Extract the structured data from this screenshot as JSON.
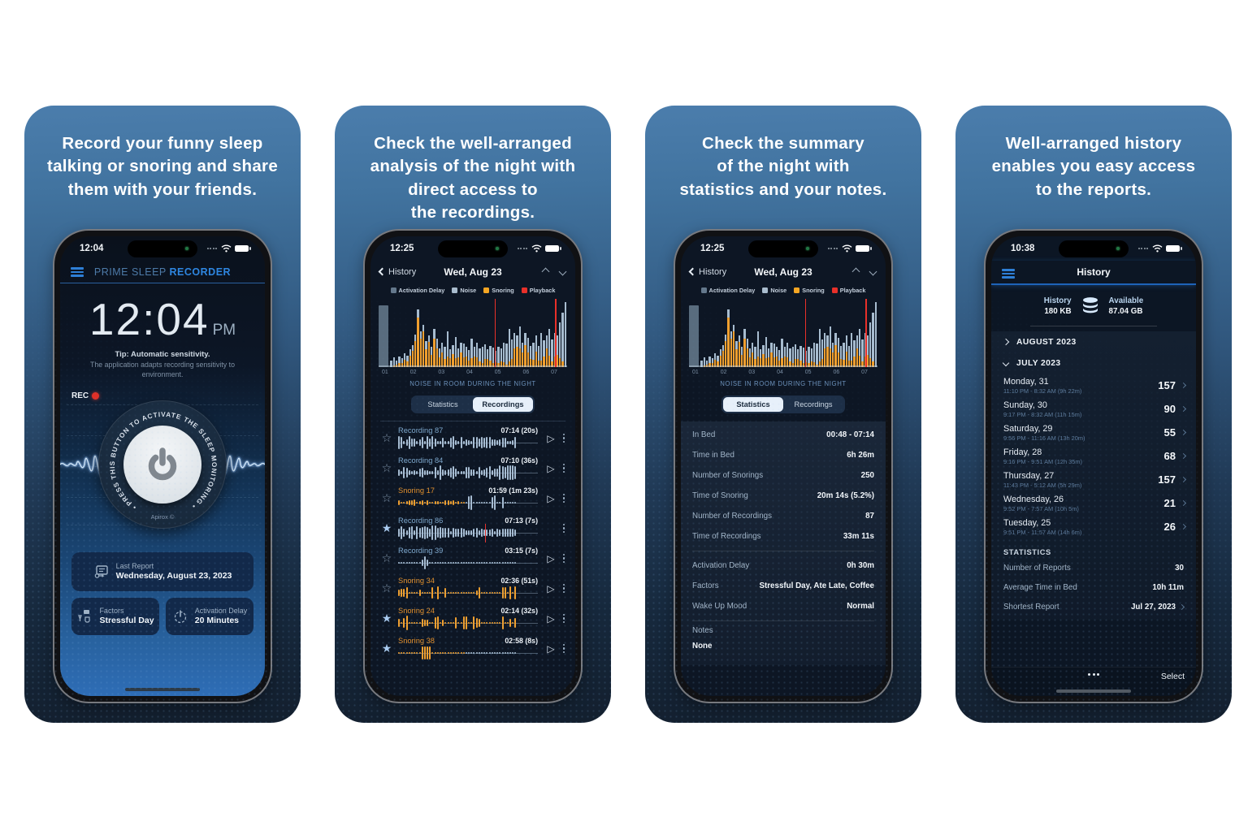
{
  "night_chart": {
    "type": "bar",
    "legend": [
      {
        "label": "Activation Delay",
        "color": "#64788c"
      },
      {
        "label": "Noise",
        "color": "#a9bccd"
      },
      {
        "label": "Snoring",
        "color": "#f5a623"
      },
      {
        "label": "Playback",
        "color": "#e8302a"
      }
    ],
    "x_ticks": [
      "01",
      "02",
      "03",
      "04",
      "05",
      "06",
      "07"
    ],
    "caption": "NOISE IN ROOM DURING THE NIGHT",
    "activation_bar": {
      "height": 0.9
    },
    "playback_lines": [
      0.615,
      0.935
    ],
    "bars": [
      [
        0.1,
        0
      ],
      [
        0.14,
        0.2
      ],
      [
        0.1,
        0.3
      ],
      [
        0.16,
        0.4
      ],
      [
        0.13,
        0.5
      ],
      [
        0.2,
        0.55
      ],
      [
        0.17,
        0.5
      ],
      [
        0.26,
        0.65
      ],
      [
        0.32,
        0.75
      ],
      [
        0.48,
        0.8
      ],
      [
        0.85,
        0.85
      ],
      [
        0.52,
        0.8
      ],
      [
        0.62,
        0.85
      ],
      [
        0.38,
        0.7
      ],
      [
        0.46,
        0.8
      ],
      [
        0.3,
        0.6
      ],
      [
        0.56,
        0.75
      ],
      [
        0.42,
        0.65
      ],
      [
        0.28,
        0.5
      ],
      [
        0.36,
        0.6
      ],
      [
        0.3,
        0.4
      ],
      [
        0.52,
        0.3
      ],
      [
        0.26,
        0.5
      ],
      [
        0.32,
        0.6
      ],
      [
        0.44,
        0.3
      ],
      [
        0.28,
        0.5
      ],
      [
        0.36,
        0.6
      ],
      [
        0.35,
        0.4
      ],
      [
        0.3,
        0.5
      ],
      [
        0.25,
        0.4
      ],
      [
        0.42,
        0.3
      ],
      [
        0.3,
        0.5
      ],
      [
        0.36,
        0.4
      ],
      [
        0.28,
        0.3
      ],
      [
        0.3,
        0.2
      ],
      [
        0.33,
        0.35
      ],
      [
        0.26,
        0.45
      ],
      [
        0.31,
        0.3
      ],
      [
        0.28,
        0.2
      ],
      [
        0.24,
        0.3
      ],
      [
        0.3,
        0.2
      ],
      [
        0.27,
        0.3
      ],
      [
        0.36,
        0.2
      ],
      [
        0.34,
        0.1
      ],
      [
        0.56,
        0.15
      ],
      [
        0.4,
        0.3
      ],
      [
        0.5,
        0.55
      ],
      [
        0.46,
        0.65
      ],
      [
        0.6,
        0.45
      ],
      [
        0.36,
        0.6
      ],
      [
        0.5,
        0.65
      ],
      [
        0.43,
        0.5
      ],
      [
        0.31,
        0.4
      ],
      [
        0.36,
        0.3
      ],
      [
        0.46,
        0.5
      ],
      [
        0.31,
        0.3
      ],
      [
        0.5,
        0.2
      ],
      [
        0.39,
        0.4
      ],
      [
        0.46,
        0.6
      ],
      [
        0.56,
        0.3
      ],
      [
        0.41,
        0.2
      ],
      [
        0.5,
        0.3
      ],
      [
        0.46,
        0.4
      ],
      [
        0.66,
        0.2
      ],
      [
        0.8,
        0.1
      ],
      [
        0.95,
        0
      ]
    ]
  },
  "panels": [
    {
      "headline_lines": [
        "Record your funny sleep",
        "talking or snoring and share",
        "them with your friends."
      ],
      "phone": {
        "status_time": "12:04",
        "header": {
          "title_primary": "PRIME SLEEP",
          "title_accent": "RECORDER"
        },
        "clock": {
          "time": "12:04",
          "ampm": "PM"
        },
        "tip_title": "Tip: Automatic sensitivity.",
        "tip_body": "The application adapts recording sensitivity to\nenvironment.",
        "rec_label": "REC",
        "ring_text": "• PRESS THIS BUTTON TO ACTIVATE THE SLEEP MONITORING •",
        "brand": "Apirox ©",
        "last_report": {
          "label": "Last Report",
          "value": "Wednesday, August 23, 2023"
        },
        "factors": {
          "label": "Factors",
          "value": "Stressful Day"
        },
        "activation_delay": {
          "label": "Activation Delay",
          "value": "20 Minutes"
        }
      }
    },
    {
      "headline_lines": [
        "Check the well-arranged",
        "analysis of the night with",
        "direct access to",
        "the recordings."
      ],
      "phone": {
        "status_time": "12:25",
        "nav": {
          "back": "History",
          "title": "Wed, Aug 23"
        },
        "tabs": {
          "options": [
            "Statistics",
            "Recordings"
          ],
          "active": "Recordings"
        },
        "recordings": [
          {
            "name": "Recording 87",
            "type": "recording",
            "time": "07:14 (20s)",
            "starred": false,
            "action": "play",
            "wave": "dense",
            "seed": 7
          },
          {
            "name": "Recording 84",
            "type": "recording",
            "time": "07:10 (36s)",
            "starred": false,
            "action": "play",
            "wave": "dense",
            "seed": 19
          },
          {
            "name": "Snoring 17",
            "type": "snoring",
            "time": "01:59 (1m 23s)",
            "starred": false,
            "action": "play",
            "wave": "mix",
            "seed": 5
          },
          {
            "name": "Recording 86",
            "type": "recording",
            "time": "07:13 (7s)",
            "starred": true,
            "action": "stop",
            "wave": "dense-big",
            "seed": 11,
            "playhead": 0.62
          },
          {
            "name": "Recording 39",
            "type": "recording",
            "time": "03:15 (7s)",
            "starred": false,
            "action": "play",
            "wave": "flat",
            "seed": 3
          },
          {
            "name": "Snoring 34",
            "type": "snoring",
            "time": "02:36 (51s)",
            "starred": false,
            "action": "play",
            "wave": "sparse",
            "seed": 23
          },
          {
            "name": "Snoring 24",
            "type": "snoring",
            "time": "02:14 (32s)",
            "starred": true,
            "action": "play",
            "wave": "sparse",
            "seed": 31
          },
          {
            "name": "Snoring 38",
            "type": "snoring",
            "time": "02:58 (8s)",
            "starred": true,
            "action": "play",
            "wave": "blob",
            "seed": 13
          }
        ]
      }
    },
    {
      "headline_lines": [
        "Check the summary",
        "of the night with",
        "statistics and your notes."
      ],
      "phone": {
        "status_time": "12:25",
        "nav": {
          "back": "History",
          "title": "Wed, Aug 23"
        },
        "tabs": {
          "options": [
            "Statistics",
            "Recordings"
          ],
          "active": "Statistics"
        },
        "stats_groups": [
          [
            [
              "In Bed",
              "00:48 - 07:14"
            ],
            [
              "Time in Bed",
              "6h 26m"
            ],
            [
              "Number of Snorings",
              "250"
            ],
            [
              "Time of Snoring",
              "20m 14s (5.2%)"
            ],
            [
              "Number of Recordings",
              "87"
            ],
            [
              "Time of Recordings",
              "33m 11s"
            ]
          ],
          [
            [
              "Activation Delay",
              "0h 30m"
            ],
            [
              "Factors",
              "Stressful Day, Ate Late, Coffee"
            ],
            [
              "Wake Up Mood",
              "Normal"
            ]
          ]
        ],
        "notes": {
          "label": "Notes",
          "value": "None"
        }
      }
    },
    {
      "headline_lines": [
        "Well-arranged history",
        "enables you easy access",
        "to the reports."
      ],
      "phone": {
        "status_time": "10:38",
        "title": "History",
        "storage": {
          "history_label": "History",
          "history_value": "180 KB",
          "available_label": "Available",
          "available_value": "87.04 GB"
        },
        "months": [
          {
            "label": "AUGUST 2023",
            "expanded": false
          },
          {
            "label": "JULY 2023",
            "expanded": true
          }
        ],
        "days": [
          {
            "title": "Monday, 31",
            "sub": "11:10 PM - 8:32 AM  (9h 22m)",
            "count": "157"
          },
          {
            "title": "Sunday, 30",
            "sub": "9:17 PM - 8:32 AM  (11h 15m)",
            "count": "90"
          },
          {
            "title": "Saturday, 29",
            "sub": "9:56 PM - 11:16 AM  (13h 20m)",
            "count": "55"
          },
          {
            "title": "Friday, 28",
            "sub": "9:16 PM - 9:51 AM  (12h 35m)",
            "count": "68"
          },
          {
            "title": "Thursday, 27",
            "sub": "11:43 PM - 5:12 AM  (5h 29m)",
            "count": "157"
          },
          {
            "title": "Wednesday, 26",
            "sub": "9:52 PM - 7:57 AM  (10h 5m)",
            "count": "21"
          },
          {
            "title": "Tuesday, 25",
            "sub": "9:51 PM - 11:57 AM  (14h 6m)",
            "count": "26"
          }
        ],
        "stats_header": "STATISTICS",
        "stats": [
          [
            "Number of Reports",
            "30"
          ],
          [
            "Average Time in Bed",
            "10h 11m"
          ],
          [
            "Shortest Report",
            "Jul 27, 2023"
          ]
        ],
        "toolbar": {
          "select": "Select"
        }
      }
    }
  ]
}
